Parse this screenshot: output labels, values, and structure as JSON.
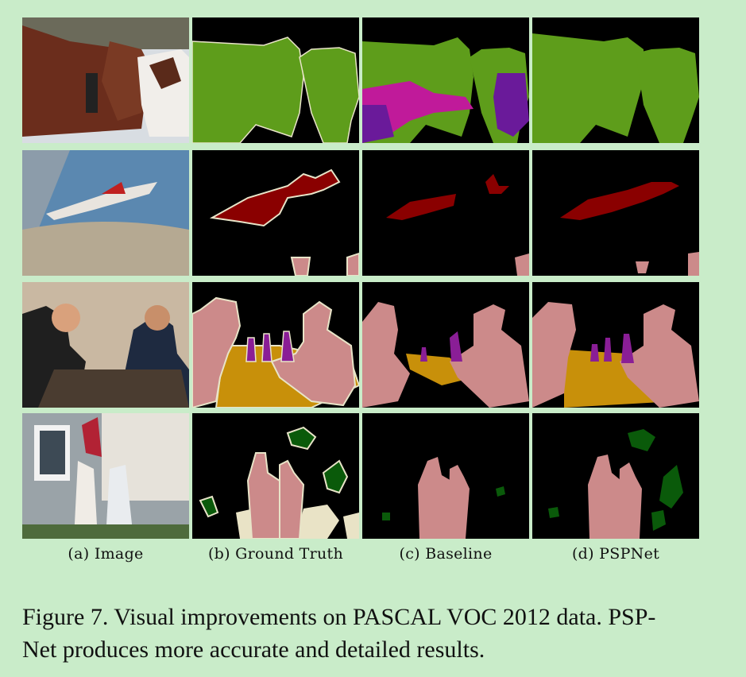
{
  "columns": [
    {
      "label": "(a) Image"
    },
    {
      "label": "(b) Ground Truth"
    },
    {
      "label": "(c) Baseline"
    },
    {
      "label": "(d) PSPNet"
    }
  ],
  "caption": {
    "line1": "Figure 7. Visual improvements on PASCAL VOC 2012 data. PSP-",
    "line2": "Net produces more accurate and detailed results."
  },
  "colors": {
    "background": "#c9ecc9",
    "cow": "#5e9d1b",
    "sheep": "#8a1e86",
    "horse": "#c01a9a",
    "aeroplane": "#8a0000",
    "person": "#cc8a8a",
    "bottle": "#8a1e96",
    "dining_table": "#c8900a",
    "potted_plant": "#0a5a0a",
    "ignore_boundary": "#e8e4c8",
    "chair_like": "#e9e3c6"
  }
}
